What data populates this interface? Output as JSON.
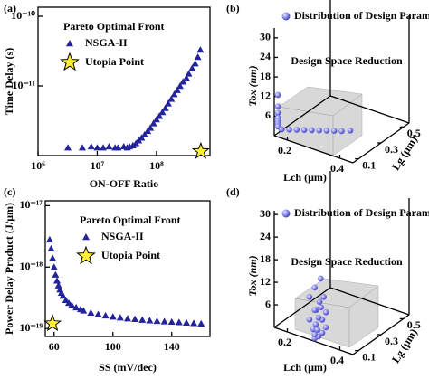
{
  "chart_data": [
    {
      "type": "scatter",
      "panel_label": "(a)",
      "xlabel": "ON-OFF Ratio",
      "ylabel": "Time Delay (s)",
      "xscale": "log",
      "yscale": "log",
      "xlim": [
        1000000,
        800000000
      ],
      "ylim": [
        1e-12,
        1.35e-10
      ],
      "xticks": [
        {
          "value": 1000000,
          "label": "10⁶"
        },
        {
          "value": 10000000,
          "label": "10⁷"
        },
        {
          "value": 100000000,
          "label": "10⁸"
        }
      ],
      "yticks": [
        {
          "value": 1e-11,
          "label": "10⁻¹¹"
        },
        {
          "value": 1e-10,
          "label": "10⁻¹⁰"
        }
      ],
      "legend_title": "Pareto Optimal Front",
      "series": [
        {
          "name": "NSGA-II",
          "color": "#23239c",
          "marker": "triangle",
          "x": [
            3200000,
            5600000,
            7900000,
            10000000,
            12600000,
            15800000,
            20000000,
            22400000,
            28000000,
            32000000,
            35000000,
            40000000,
            45000000,
            50000000,
            56000000,
            63000000,
            71000000,
            79000000,
            89000000,
            100000000,
            112000000,
            126000000,
            141000000,
            158000000,
            178000000,
            200000000,
            224000000,
            250000000,
            280000000,
            320000000,
            350000000,
            400000000,
            450000000,
            500000000,
            550000000
          ],
          "y": [
            1.3e-12,
            1.3e-12,
            1.35e-12,
            1.3e-12,
            1.3e-12,
            1.35e-12,
            1.3e-12,
            1.3e-12,
            1.35e-12,
            1.3e-12,
            1.35e-12,
            1.4e-12,
            1.5e-12,
            1.65e-12,
            1.8e-12,
            2e-12,
            2.25e-12,
            2.5e-12,
            2.9e-12,
            3.3e-12,
            3.7e-12,
            4.2e-12,
            4.8e-12,
            5.6e-12,
            6.5e-12,
            7.6e-12,
            8.7e-12,
            1e-11,
            1.15e-11,
            1.3e-11,
            1.5e-11,
            1.8e-11,
            2.1e-11,
            2.6e-11,
            3.3e-11
          ]
        },
        {
          "name": "Utopia Point",
          "color": "#fff033",
          "marker": "star",
          "x": [
            560000000
          ],
          "y": [
            1.15e-12
          ]
        }
      ]
    },
    {
      "type": "scatter3d",
      "panel_label": "(b)",
      "xlabel": "Lch (μm)",
      "ylabel": "Lg (μm)",
      "zlabel": "Tox (nm)",
      "xlim": [
        0.15,
        0.45
      ],
      "ylim": [
        0.05,
        0.55
      ],
      "zlim": [
        0,
        33
      ],
      "xticks": [
        0.2,
        0.4
      ],
      "yticks": [
        0.1,
        0.3,
        0.5
      ],
      "zticks": [
        6,
        12,
        18,
        24,
        30
      ],
      "annotation": "Design Space Reduction",
      "series": [
        {
          "name": "Distribution of Design Parameters",
          "color": "#7b7be6",
          "x": [
            0.16,
            0.16,
            0.16,
            0.16,
            0.16,
            0.16,
            0.16,
            0.16,
            0.17,
            0.19,
            0.21,
            0.23,
            0.25,
            0.27,
            0.29,
            0.31,
            0.33,
            0.35
          ],
          "y": [
            0.06,
            0.06,
            0.06,
            0.06,
            0.06,
            0.06,
            0.06,
            0.06,
            0.07,
            0.09,
            0.11,
            0.13,
            0.15,
            0.17,
            0.19,
            0.21,
            0.23,
            0.26
          ],
          "z": [
            12.5,
            9,
            7,
            5.5,
            4.5,
            3.8,
            3.2,
            2.8,
            2,
            2,
            2,
            2,
            2,
            2,
            2,
            2,
            2,
            2
          ]
        }
      ]
    },
    {
      "type": "scatter",
      "panel_label": "(c)",
      "xlabel": "SS (mV/dec)",
      "ylabel": "Power Delay Product (J/μm)",
      "xscale": "linear",
      "yscale": "log",
      "xlim": [
        54,
        166
      ],
      "ylim": [
        7.4e-20,
        1.2e-17
      ],
      "xticks": [
        60,
        100,
        140
      ],
      "yticks": [
        {
          "value": 1e-19,
          "label": "10⁻¹⁹"
        },
        {
          "value": 1e-18,
          "label": "10⁻¹⁸"
        },
        {
          "value": 1e-17,
          "label": "10⁻¹⁷"
        }
      ],
      "legend_title": "Pareto Optimal Front",
      "series": [
        {
          "name": "NSGA-II",
          "color": "#23239c",
          "marker": "triangle",
          "x": [
            57,
            58,
            59,
            60,
            61,
            62,
            63,
            64,
            65,
            66,
            68,
            70,
            72,
            75,
            78,
            80,
            85,
            90,
            95,
            100,
            105,
            110,
            115,
            120,
            125,
            130,
            135,
            140,
            145,
            150,
            155,
            160
          ],
          "y": [
            2.8e-18,
            2e-18,
            1.4e-18,
            1e-18,
            7.5e-19,
            6e-19,
            5e-19,
            4.3e-19,
            3.8e-19,
            3.4e-19,
            2.9e-19,
            2.6e-19,
            2.4e-19,
            2.2e-19,
            2.05e-19,
            1.95e-19,
            1.8e-19,
            1.7e-19,
            1.62e-19,
            1.55e-19,
            1.5e-19,
            1.45e-19,
            1.42e-19,
            1.38e-19,
            1.35e-19,
            1.32e-19,
            1.3e-19,
            1.28e-19,
            1.26e-19,
            1.24e-19,
            1.22e-19,
            1.2e-19
          ]
        },
        {
          "name": "Utopia Point",
          "color": "#fff033",
          "marker": "star",
          "x": [
            59
          ],
          "y": [
            1.2e-19
          ]
        }
      ]
    },
    {
      "type": "scatter3d",
      "panel_label": "(d)",
      "xlabel": "Lch (μm)",
      "ylabel": "Lg (μm)",
      "zlabel": "Tox (nm)",
      "xlim": [
        0.15,
        0.45
      ],
      "ylim": [
        0.05,
        0.55
      ],
      "zlim": [
        0,
        31
      ],
      "xticks": [
        0.2,
        0.4
      ],
      "yticks": [
        0.1,
        0.3,
        0.5
      ],
      "zticks": [
        6,
        12,
        18,
        24,
        30
      ],
      "annotation": "Design Space Reduction",
      "series": [
        {
          "name": "Distribution of Design Parameters",
          "color": "#7b7be6",
          "x": [
            0.3,
            0.31,
            0.3,
            0.32,
            0.29,
            0.31,
            0.33,
            0.3,
            0.28,
            0.32,
            0.31,
            0.29,
            0.33,
            0.3,
            0.32,
            0.31,
            0.28,
            0.33,
            0.3,
            0.31
          ],
          "y": [
            0.06,
            0.07,
            0.06,
            0.08,
            0.07,
            0.06,
            0.09,
            0.07,
            0.06,
            0.08,
            0.07,
            0.1,
            0.09,
            0.06,
            0.07,
            0.08,
            0.06,
            0.07,
            0.06,
            0.09
          ],
          "z": [
            0.5,
            1,
            1.5,
            2,
            2.5,
            3,
            3.5,
            4,
            5,
            5.5,
            6,
            7,
            7.5,
            8,
            9,
            10,
            11,
            12,
            14,
            16
          ]
        }
      ]
    }
  ]
}
